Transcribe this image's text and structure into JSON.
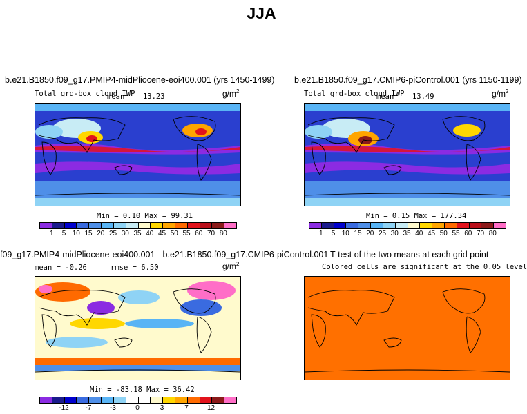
{
  "title": "JJA",
  "panels": {
    "p1": {
      "case": "b.e21.B1850.f09_g17.PMIP4-midPliocene-eoi400.001 (yrs 1450-1499)",
      "variable": "Total grd-box cloud IWP",
      "mean_label": "mean=",
      "mean_value": "13.23",
      "units": "g/m",
      "units_exp": "2",
      "minmax": "Min =   0.10 Max =  99.31"
    },
    "p2": {
      "case": "b.e21.B1850.f09_g17.CMIP6-piControl.001 (yrs 1150-1199)",
      "variable": "Total grd-box cloud IWP",
      "mean_label": "mean=",
      "mean_value": "13.49",
      "units": "g/m",
      "units_exp": "2",
      "minmax": "Min =   0.15 Max = 177.34"
    },
    "p3": {
      "case": "f09_g17.PMIP4-midPliocene-eoi400.001 - b.e21.B1850.f09_g17.CMIP6-piControl.001",
      "mean_text": "mean =   -0.26",
      "rmse_text": "rmse =    6.50",
      "units": "g/m",
      "units_exp": "2",
      "minmax": "Min = -83.18 Max =  36.42"
    },
    "p4": {
      "title": "T-test of the two means at each grid point",
      "subtitle": "Colored cells are significant at the 0.05 level"
    }
  },
  "colorbar_abs": {
    "colors": [
      "#8b2be2",
      "#1a1a8c",
      "#0000cd",
      "#3a6be0",
      "#4f8fe8",
      "#59b4f5",
      "#8fd3f5",
      "#c8ecf5",
      "#fffacd",
      "#ffd700",
      "#ffa500",
      "#ff6a00",
      "#e2131c",
      "#b80f1a",
      "#8b1a1a",
      "#ff6ec7"
    ],
    "labels": [
      "1",
      "5",
      "10",
      "15",
      "20",
      "25",
      "30",
      "35",
      "40",
      "45",
      "50",
      "55",
      "60",
      "70",
      "80"
    ]
  },
  "colorbar_diff": {
    "colors": [
      "#8b2be2",
      "#1a1a8c",
      "#0000cd",
      "#3a6be0",
      "#4f8fe8",
      "#59b4f5",
      "#8fd3f5",
      "#ffffff",
      "#ffffff",
      "#fffacd",
      "#ffd700",
      "#ffa500",
      "#ff6a00",
      "#e2131c",
      "#8b1a1a",
      "#ff6ec7"
    ],
    "labels": [
      "-12",
      "-7",
      "-3",
      "0",
      "3",
      "7",
      "12"
    ]
  },
  "colors": {
    "ttest_fill": "#ff7000",
    "map_abs_bg": "#2a3fcf",
    "map_diff_bg": "#fffacd"
  }
}
